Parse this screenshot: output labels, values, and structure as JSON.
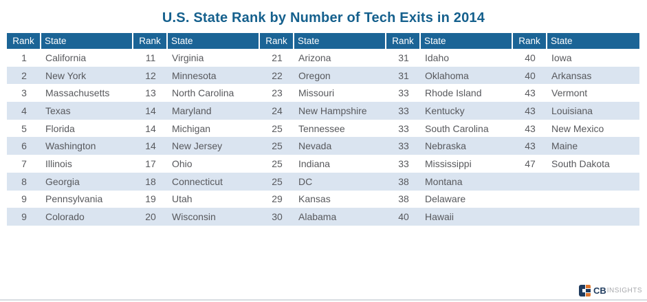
{
  "chart_data": {
    "type": "table",
    "title": "U.S. State Rank by Number of Tech Exits in 2014",
    "header": {
      "rank_label": "Rank",
      "state_label": "State"
    },
    "groups": [
      {
        "rows": [
          {
            "rank": "1",
            "state": "California"
          },
          {
            "rank": "2",
            "state": "New York"
          },
          {
            "rank": "3",
            "state": "Massachusetts"
          },
          {
            "rank": "4",
            "state": "Texas"
          },
          {
            "rank": "5",
            "state": "Florida"
          },
          {
            "rank": "6",
            "state": "Washington"
          },
          {
            "rank": "7",
            "state": "Illinois"
          },
          {
            "rank": "8",
            "state": "Georgia"
          },
          {
            "rank": "9",
            "state": "Pennsylvania"
          },
          {
            "rank": "9",
            "state": "Colorado"
          }
        ]
      },
      {
        "rows": [
          {
            "rank": "11",
            "state": "Virginia"
          },
          {
            "rank": "12",
            "state": "Minnesota"
          },
          {
            "rank": "13",
            "state": "North Carolina"
          },
          {
            "rank": "14",
            "state": "Maryland"
          },
          {
            "rank": "14",
            "state": "Michigan"
          },
          {
            "rank": "14",
            "state": "New Jersey"
          },
          {
            "rank": "17",
            "state": "Ohio"
          },
          {
            "rank": "18",
            "state": "Connecticut"
          },
          {
            "rank": "19",
            "state": "Utah"
          },
          {
            "rank": "20",
            "state": "Wisconsin"
          }
        ]
      },
      {
        "rows": [
          {
            "rank": "21",
            "state": "Arizona"
          },
          {
            "rank": "22",
            "state": "Oregon"
          },
          {
            "rank": "23",
            "state": "Missouri"
          },
          {
            "rank": "24",
            "state": "New Hampshire"
          },
          {
            "rank": "25",
            "state": "Tennessee"
          },
          {
            "rank": "25",
            "state": "Nevada"
          },
          {
            "rank": "25",
            "state": "Indiana"
          },
          {
            "rank": "25",
            "state": "DC"
          },
          {
            "rank": "29",
            "state": "Kansas"
          },
          {
            "rank": "30",
            "state": "Alabama"
          }
        ]
      },
      {
        "rows": [
          {
            "rank": "31",
            "state": "Idaho"
          },
          {
            "rank": "31",
            "state": "Oklahoma"
          },
          {
            "rank": "33",
            "state": "Rhode Island"
          },
          {
            "rank": "33",
            "state": "Kentucky"
          },
          {
            "rank": "33",
            "state": "South Carolina"
          },
          {
            "rank": "33",
            "state": "Nebraska"
          },
          {
            "rank": "33",
            "state": "Mississippi"
          },
          {
            "rank": "38",
            "state": "Montana"
          },
          {
            "rank": "38",
            "state": "Delaware"
          },
          {
            "rank": "40",
            "state": "Hawaii"
          }
        ]
      },
      {
        "rows": [
          {
            "rank": "40",
            "state": "Iowa"
          },
          {
            "rank": "40",
            "state": "Arkansas"
          },
          {
            "rank": "43",
            "state": "Vermont"
          },
          {
            "rank": "43",
            "state": "Louisiana"
          },
          {
            "rank": "43",
            "state": "New Mexico"
          },
          {
            "rank": "43",
            "state": "Maine"
          },
          {
            "rank": "47",
            "state": "South Dakota"
          },
          {
            "rank": "",
            "state": ""
          },
          {
            "rank": "",
            "state": ""
          },
          {
            "rank": "",
            "state": ""
          }
        ]
      }
    ]
  },
  "footer": {
    "logo_cb": "CB",
    "logo_insights": "INSIGHTS"
  },
  "colors": {
    "title_blue": "#15608D",
    "header_blue": "#1B6496",
    "row_alt": "#DAE4F0",
    "body_text": "#57585C",
    "logo_navy": "#1F3B5E",
    "logo_orange": "#E0772E",
    "logo_gray": "#A8A9AD",
    "bottom_line": "#D7DCE1"
  }
}
